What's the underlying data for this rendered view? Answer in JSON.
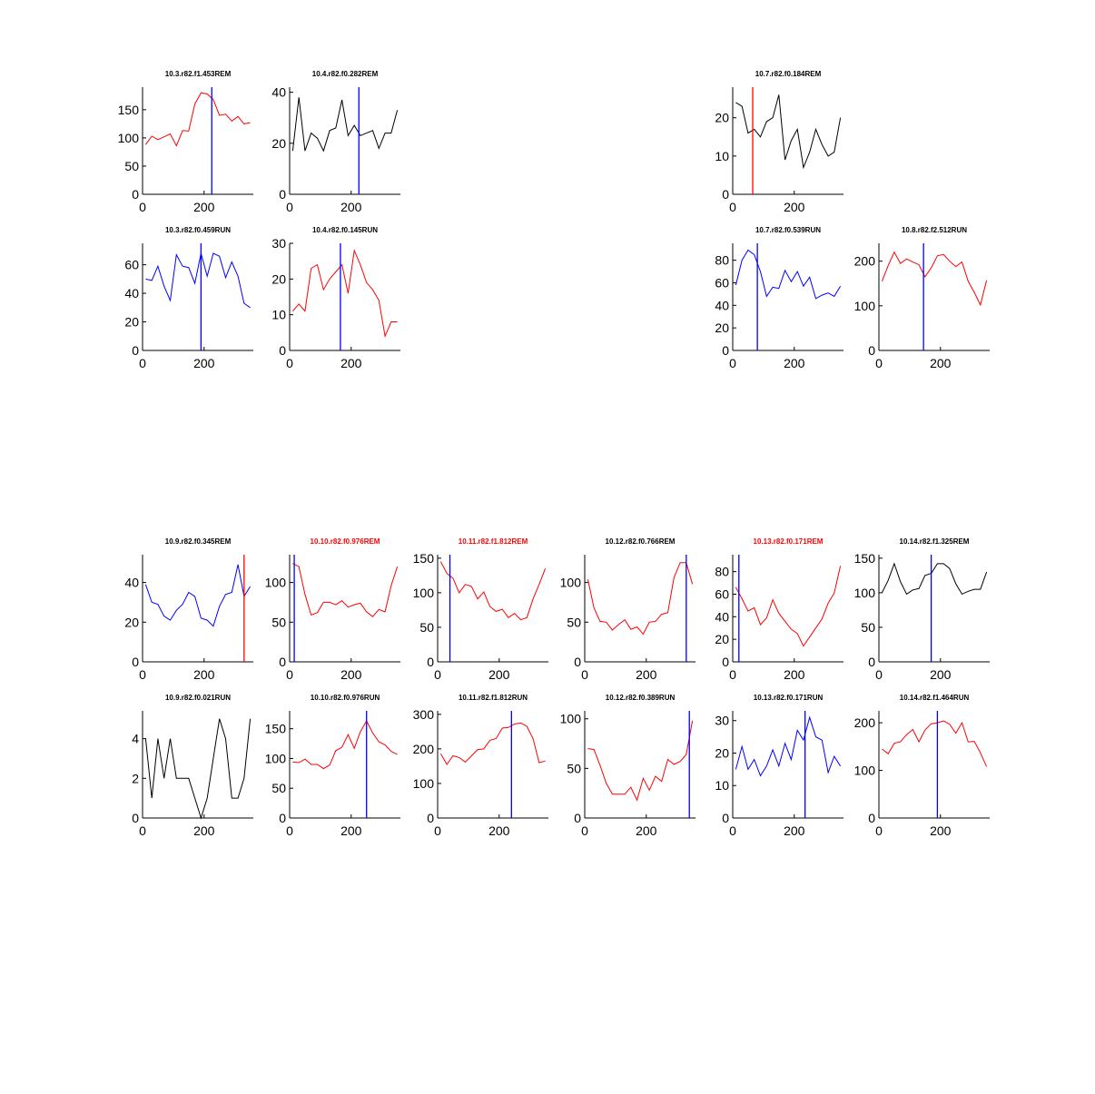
{
  "figure": {
    "background": "#ffffff",
    "panel_count": 20
  },
  "colors": {
    "red": "#ff0000",
    "blue": "#0000ff",
    "black": "#000000"
  },
  "chart_data": [
    {
      "type": "line",
      "title": "10.3.r82.f1.453REM",
      "title_color": "black",
      "line_color": "red",
      "marker_color": "blue",
      "marker_x": 225,
      "xlim": [
        0,
        360
      ],
      "ylim": [
        0,
        190
      ],
      "yticks": [
        0,
        50,
        100,
        150
      ],
      "xticks": [
        0,
        200
      ],
      "x": [
        10,
        30,
        50,
        70,
        90,
        110,
        130,
        150,
        170,
        190,
        210,
        230,
        250,
        270,
        290,
        310,
        330,
        350
      ],
      "values": [
        88,
        103,
        97,
        102,
        107,
        86,
        113,
        112,
        160,
        180,
        178,
        168,
        140,
        142,
        130,
        138,
        125,
        127
      ]
    },
    {
      "type": "line",
      "title": "10.4.r82.f0.282REM",
      "title_color": "black",
      "line_color": "black",
      "marker_color": "blue",
      "marker_x": 225,
      "xlim": [
        0,
        360
      ],
      "ylim": [
        0,
        42
      ],
      "yticks": [
        0,
        20,
        40
      ],
      "xticks": [
        0,
        200
      ],
      "x": [
        10,
        30,
        50,
        70,
        90,
        110,
        130,
        150,
        170,
        190,
        210,
        230,
        250,
        270,
        290,
        310,
        330,
        350
      ],
      "values": [
        17,
        38,
        17,
        24,
        22,
        17,
        25,
        26,
        37,
        23,
        27,
        23,
        24,
        25,
        18,
        24,
        24,
        33
      ]
    },
    {
      "type": "line",
      "title": "10.7.r82.f0.184REM",
      "title_color": "black",
      "line_color": "black",
      "marker_color": "red",
      "marker_x": 65,
      "xlim": [
        0,
        360
      ],
      "ylim": [
        0,
        28
      ],
      "yticks": [
        0,
        10,
        20
      ],
      "xticks": [
        0,
        200
      ],
      "x": [
        10,
        30,
        50,
        70,
        90,
        110,
        130,
        150,
        170,
        190,
        210,
        230,
        250,
        270,
        290,
        310,
        330,
        350
      ],
      "values": [
        24,
        23,
        16,
        17,
        15,
        19,
        20,
        26,
        9,
        14,
        17,
        7,
        11,
        17,
        13,
        10,
        11,
        20
      ]
    },
    {
      "type": "line",
      "title": "10.3.r82.f0.459RUN",
      "title_color": "black",
      "line_color": "blue",
      "marker_color": "blue",
      "marker_x": 190,
      "xlim": [
        0,
        360
      ],
      "ylim": [
        0,
        75
      ],
      "yticks": [
        0,
        20,
        40,
        60
      ],
      "xticks": [
        0,
        200
      ],
      "x": [
        10,
        30,
        50,
        70,
        90,
        110,
        130,
        150,
        170,
        190,
        210,
        230,
        250,
        270,
        290,
        310,
        330,
        350
      ],
      "values": [
        50,
        49,
        59,
        45,
        35,
        67,
        59,
        58,
        47,
        68,
        52,
        68,
        66,
        51,
        62,
        52,
        33,
        30
      ]
    },
    {
      "type": "line",
      "title": "10.4.r82.f0.145RUN",
      "title_color": "black",
      "line_color": "red",
      "marker_color": "blue",
      "marker_x": 165,
      "xlim": [
        0,
        360
      ],
      "ylim": [
        0,
        30
      ],
      "yticks": [
        0,
        10,
        20,
        30
      ],
      "xticks": [
        0,
        200
      ],
      "x": [
        10,
        30,
        50,
        70,
        90,
        110,
        130,
        150,
        170,
        190,
        210,
        230,
        250,
        270,
        290,
        310,
        330,
        350
      ],
      "values": [
        11,
        13,
        11,
        23,
        24,
        17,
        20,
        22,
        24,
        16,
        28,
        24,
        19,
        17,
        14,
        4,
        8,
        8
      ]
    },
    {
      "type": "line",
      "title": "10.7.r82.f0.539RUN",
      "title_color": "black",
      "line_color": "blue",
      "marker_color": "blue",
      "marker_x": 80,
      "xlim": [
        0,
        360
      ],
      "ylim": [
        0,
        95
      ],
      "yticks": [
        0,
        20,
        40,
        60,
        80
      ],
      "xticks": [
        0,
        200
      ],
      "x": [
        10,
        30,
        50,
        70,
        90,
        110,
        130,
        150,
        170,
        190,
        210,
        230,
        250,
        270,
        290,
        310,
        330,
        350
      ],
      "values": [
        58,
        80,
        89,
        85,
        70,
        48,
        56,
        55,
        71,
        61,
        70,
        57,
        65,
        46,
        49,
        51,
        48,
        57
      ]
    },
    {
      "type": "line",
      "title": "10.8.r82.f2.512RUN",
      "title_color": "black",
      "line_color": "red",
      "marker_color": "blue",
      "marker_x": 145,
      "xlim": [
        0,
        360
      ],
      "ylim": [
        0,
        240
      ],
      "yticks": [
        0,
        100,
        200
      ],
      "xticks": [
        0,
        200
      ],
      "x": [
        10,
        30,
        50,
        70,
        90,
        110,
        130,
        150,
        170,
        190,
        210,
        230,
        250,
        270,
        290,
        310,
        330,
        350
      ],
      "values": [
        155,
        190,
        220,
        195,
        205,
        198,
        192,
        165,
        185,
        212,
        215,
        200,
        188,
        198,
        155,
        130,
        102,
        157
      ]
    },
    {
      "type": "line",
      "title": "10.9.r82.f0.345REM",
      "title_color": "black",
      "line_color": "blue",
      "marker_color": "red",
      "marker_x": 330,
      "xlim": [
        0,
        360
      ],
      "ylim": [
        0,
        54
      ],
      "yticks": [
        0,
        20,
        40
      ],
      "xticks": [
        0,
        200
      ],
      "x": [
        10,
        30,
        50,
        70,
        90,
        110,
        130,
        150,
        170,
        190,
        210,
        230,
        250,
        270,
        290,
        310,
        330,
        350
      ],
      "values": [
        39,
        30,
        29,
        23,
        21,
        26,
        29,
        35,
        33,
        22,
        21,
        18,
        28,
        34,
        35,
        49,
        33,
        38
      ]
    },
    {
      "type": "line",
      "title": "10.10.r82.f0.976REM",
      "title_color": "red",
      "line_color": "red",
      "marker_color": "blue",
      "marker_x": 15,
      "xlim": [
        0,
        360
      ],
      "ylim": [
        0,
        135
      ],
      "yticks": [
        0,
        50,
        100
      ],
      "xticks": [
        0,
        200
      ],
      "x": [
        10,
        30,
        50,
        70,
        90,
        110,
        130,
        150,
        170,
        190,
        210,
        230,
        250,
        270,
        290,
        310,
        330,
        350
      ],
      "values": [
        124,
        120,
        85,
        59,
        62,
        75,
        75,
        72,
        77,
        69,
        72,
        74,
        63,
        57,
        66,
        63,
        96,
        120
      ]
    },
    {
      "type": "line",
      "title": "10.11.r82.f1.812REM",
      "title_color": "red",
      "line_color": "red",
      "marker_color": "blue",
      "marker_x": 40,
      "xlim": [
        0,
        360
      ],
      "ylim": [
        0,
        155
      ],
      "yticks": [
        0,
        50,
        100,
        150
      ],
      "xticks": [
        0,
        200
      ],
      "x": [
        10,
        30,
        50,
        70,
        90,
        110,
        130,
        150,
        170,
        190,
        210,
        230,
        250,
        270,
        290,
        310,
        330,
        350
      ],
      "values": [
        145,
        128,
        121,
        100,
        112,
        109,
        91,
        101,
        80,
        73,
        76,
        64,
        70,
        61,
        64,
        91,
        112,
        135
      ]
    },
    {
      "type": "line",
      "title": "10.12.r82.f0.766REM",
      "title_color": "black",
      "line_color": "red",
      "marker_color": "blue",
      "marker_x": 330,
      "xlim": [
        0,
        360
      ],
      "ylim": [
        0,
        135
      ],
      "yticks": [
        0,
        50,
        100
      ],
      "xticks": [
        0,
        200
      ],
      "x": [
        10,
        30,
        50,
        70,
        90,
        110,
        130,
        150,
        170,
        190,
        210,
        230,
        250,
        270,
        290,
        310,
        330,
        350
      ],
      "values": [
        104,
        68,
        51,
        50,
        40,
        47,
        53,
        41,
        44,
        35,
        50,
        51,
        60,
        62,
        106,
        125,
        125,
        98
      ]
    },
    {
      "type": "line",
      "title": "10.13.r82.f0.171REM",
      "title_color": "red",
      "line_color": "red",
      "marker_color": "blue",
      "marker_x": 20,
      "xlim": [
        0,
        360
      ],
      "ylim": [
        0,
        95
      ],
      "yticks": [
        0,
        20,
        40,
        60,
        80
      ],
      "xticks": [
        0,
        200
      ],
      "x": [
        10,
        30,
        50,
        70,
        90,
        110,
        130,
        150,
        170,
        190,
        210,
        230,
        250,
        270,
        290,
        310,
        330,
        350
      ],
      "values": [
        66,
        56,
        45,
        48,
        33,
        39,
        55,
        43,
        36,
        29,
        25,
        14,
        22,
        30,
        38,
        52,
        61,
        85
      ]
    },
    {
      "type": "line",
      "title": "10.14.r82.f1.325REM",
      "title_color": "black",
      "line_color": "black",
      "marker_color": "blue",
      "marker_x": 170,
      "xlim": [
        0,
        360
      ],
      "ylim": [
        0,
        155
      ],
      "yticks": [
        0,
        50,
        100,
        150
      ],
      "xticks": [
        0,
        200
      ],
      "x": [
        10,
        30,
        50,
        70,
        90,
        110,
        130,
        150,
        170,
        190,
        210,
        230,
        250,
        270,
        290,
        310,
        330,
        350
      ],
      "values": [
        100,
        118,
        142,
        116,
        98,
        104,
        106,
        125,
        128,
        142,
        142,
        135,
        113,
        98,
        102,
        105,
        105,
        130
      ]
    },
    {
      "type": "line",
      "title": "10.9.r82.f0.021RUN",
      "title_color": "black",
      "line_color": "black",
      "marker_color": "blue",
      "marker_x": null,
      "xlim": [
        0,
        360
      ],
      "ylim": [
        0,
        5.4
      ],
      "yticks": [
        0,
        2,
        4
      ],
      "xticks": [
        0,
        200
      ],
      "x": [
        10,
        30,
        50,
        70,
        90,
        110,
        130,
        150,
        170,
        190,
        210,
        230,
        250,
        270,
        290,
        310,
        330,
        350
      ],
      "values": [
        4,
        1,
        4,
        2,
        4,
        2,
        2,
        2,
        1,
        0,
        1,
        3,
        5,
        4,
        1,
        1,
        2,
        5
      ]
    },
    {
      "type": "line",
      "title": "10.10.r82.f0.976RUN",
      "title_color": "black",
      "line_color": "red",
      "marker_color": "blue",
      "marker_x": 250,
      "xlim": [
        0,
        360
      ],
      "ylim": [
        0,
        180
      ],
      "yticks": [
        0,
        50,
        100,
        150
      ],
      "xticks": [
        0,
        200
      ],
      "x": [
        10,
        30,
        50,
        70,
        90,
        110,
        130,
        150,
        170,
        190,
        210,
        230,
        250,
        270,
        290,
        310,
        330,
        350
      ],
      "values": [
        94,
        93,
        99,
        90,
        90,
        83,
        89,
        113,
        119,
        140,
        117,
        145,
        163,
        143,
        128,
        123,
        112,
        107
      ]
    },
    {
      "type": "line",
      "title": "10.11.r82.f1.812RUN",
      "title_color": "black",
      "line_color": "red",
      "marker_color": "blue",
      "marker_x": 240,
      "xlim": [
        0,
        360
      ],
      "ylim": [
        0,
        310
      ],
      "yticks": [
        0,
        100,
        200,
        300
      ],
      "xticks": [
        0,
        200
      ],
      "x": [
        10,
        30,
        50,
        70,
        90,
        110,
        130,
        150,
        170,
        190,
        210,
        230,
        250,
        270,
        290,
        310,
        330,
        350
      ],
      "values": [
        186,
        155,
        180,
        175,
        162,
        180,
        198,
        200,
        225,
        230,
        260,
        262,
        272,
        275,
        265,
        230,
        160,
        165
      ]
    },
    {
      "type": "line",
      "title": "10.12.r82.f0.389RUN",
      "title_color": "black",
      "line_color": "red",
      "marker_color": "blue",
      "marker_x": 340,
      "xlim": [
        0,
        360
      ],
      "ylim": [
        0,
        108
      ],
      "yticks": [
        0,
        50,
        100
      ],
      "xticks": [
        0,
        200
      ],
      "x": [
        10,
        30,
        50,
        70,
        90,
        110,
        130,
        150,
        170,
        190,
        210,
        230,
        250,
        270,
        290,
        310,
        330,
        350
      ],
      "values": [
        70,
        69,
        53,
        35,
        24,
        24,
        24,
        31,
        18,
        40,
        28,
        42,
        37,
        59,
        54,
        57,
        64,
        98
      ]
    },
    {
      "type": "line",
      "title": "10.13.r82.f0.171RUN",
      "title_color": "black",
      "line_color": "blue",
      "marker_color": "blue",
      "marker_x": 235,
      "xlim": [
        0,
        360
      ],
      "ylim": [
        0,
        33
      ],
      "yticks": [
        0,
        10,
        20,
        30
      ],
      "xticks": [
        0,
        200
      ],
      "x": [
        10,
        30,
        50,
        70,
        90,
        110,
        130,
        150,
        170,
        190,
        210,
        230,
        250,
        270,
        290,
        310,
        330,
        350
      ],
      "values": [
        15,
        22,
        15,
        18,
        13,
        16,
        21,
        16,
        23,
        18,
        27,
        24,
        31,
        25,
        24,
        14,
        19,
        16
      ]
    },
    {
      "type": "line",
      "title": "10.14.r82.f1.464RUN",
      "title_color": "black",
      "line_color": "red",
      "marker_color": "blue",
      "marker_x": 190,
      "xlim": [
        0,
        360
      ],
      "ylim": [
        0,
        225
      ],
      "yticks": [
        0,
        100,
        200
      ],
      "xticks": [
        0,
        200
      ],
      "x": [
        10,
        30,
        50,
        70,
        90,
        110,
        130,
        150,
        170,
        190,
        210,
        230,
        250,
        270,
        290,
        310,
        330,
        350
      ],
      "values": [
        145,
        135,
        157,
        160,
        175,
        186,
        160,
        185,
        198,
        200,
        204,
        197,
        178,
        200,
        160,
        161,
        137,
        108
      ]
    }
  ]
}
